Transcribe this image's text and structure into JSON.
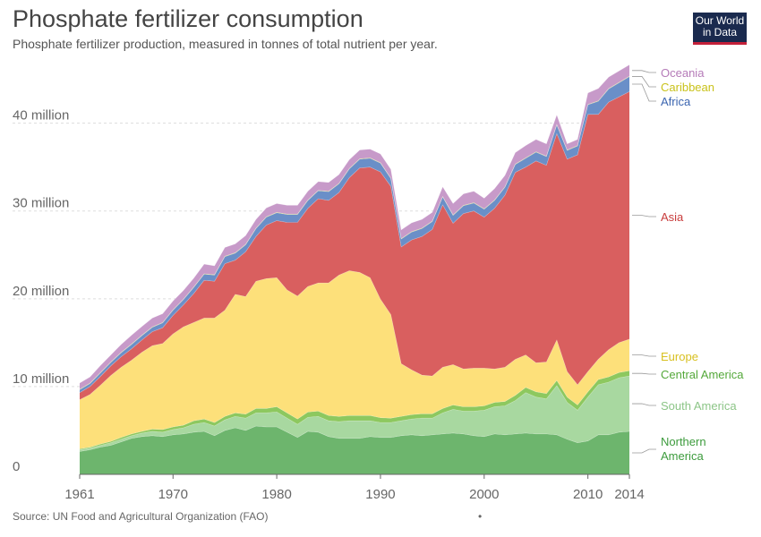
{
  "header": {
    "title": "Phosphate fertilizer consumption",
    "subtitle": "Phosphate fertilizer production, measured in tonnes of total nutrient per year.",
    "logo_line1": "Our World",
    "logo_line2": "in Data"
  },
  "footer": {
    "source": "Source: UN Food and Agricultural Organization (FAO)",
    "dot": "•"
  },
  "chart_data": {
    "type": "area",
    "stacked": true,
    "title": "Phosphate fertilizer consumption",
    "xlim": [
      1961,
      2014
    ],
    "ylim": [
      0,
      47000000
    ],
    "y_ticks": [
      0,
      10000000,
      20000000,
      30000000,
      40000000
    ],
    "y_tick_labels": [
      "0",
      "10 million",
      "20 million",
      "30 million",
      "40 million"
    ],
    "x_ticks": [
      1961,
      1970,
      1980,
      1990,
      2000,
      2010,
      2014
    ],
    "x_tick_labels": [
      "1961",
      "1970",
      "1980",
      "1990",
      "2000",
      "2010",
      "2014"
    ],
    "grid": true,
    "legend_placement": "right",
    "x": [
      1961,
      1962,
      1963,
      1964,
      1965,
      1966,
      1967,
      1968,
      1969,
      1970,
      1971,
      1972,
      1973,
      1974,
      1975,
      1976,
      1977,
      1978,
      1979,
      1980,
      1981,
      1982,
      1983,
      1984,
      1985,
      1986,
      1987,
      1988,
      1989,
      1990,
      1991,
      1992,
      1993,
      1994,
      1995,
      1996,
      1997,
      1998,
      1999,
      2000,
      2001,
      2002,
      2003,
      2004,
      2005,
      2006,
      2007,
      2008,
      2009,
      2010,
      2011,
      2012,
      2013,
      2014
    ],
    "series": [
      {
        "name": "Northern America",
        "color": "#6db56d",
        "values": [
          2.6,
          2.8,
          3.1,
          3.3,
          3.7,
          4.1,
          4.3,
          4.4,
          4.3,
          4.5,
          4.6,
          4.8,
          4.9,
          4.4,
          5.0,
          5.3,
          5.0,
          5.5,
          5.4,
          5.4,
          4.8,
          4.2,
          4.9,
          4.8,
          4.3,
          4.1,
          4.1,
          4.1,
          4.3,
          4.2,
          4.2,
          4.4,
          4.5,
          4.4,
          4.5,
          4.6,
          4.7,
          4.6,
          4.4,
          4.3,
          4.6,
          4.5,
          4.6,
          4.7,
          4.6,
          4.6,
          4.5,
          4.0,
          3.6,
          3.8,
          4.5,
          4.5,
          4.8,
          4.9
        ]
      },
      {
        "name": "South America",
        "color": "#a8d8a0",
        "values": [
          0.2,
          0.2,
          0.2,
          0.3,
          0.3,
          0.3,
          0.4,
          0.5,
          0.5,
          0.6,
          0.7,
          0.9,
          1.0,
          1.1,
          1.2,
          1.3,
          1.4,
          1.5,
          1.6,
          1.7,
          1.6,
          1.5,
          1.6,
          1.8,
          1.8,
          1.9,
          2.0,
          2.0,
          1.8,
          1.7,
          1.7,
          1.7,
          1.8,
          2.0,
          1.9,
          2.4,
          2.7,
          2.6,
          2.8,
          3.0,
          3.1,
          3.3,
          3.8,
          4.6,
          4.2,
          4.0,
          5.6,
          4.2,
          3.7,
          5.0,
          5.7,
          6.0,
          6.2,
          6.3
        ]
      },
      {
        "name": "Central America",
        "color": "#8dc85f",
        "values": [
          0.1,
          0.1,
          0.15,
          0.15,
          0.2,
          0.2,
          0.2,
          0.25,
          0.3,
          0.3,
          0.3,
          0.4,
          0.4,
          0.4,
          0.4,
          0.4,
          0.45,
          0.5,
          0.5,
          0.6,
          0.6,
          0.6,
          0.6,
          0.6,
          0.6,
          0.6,
          0.6,
          0.6,
          0.6,
          0.55,
          0.5,
          0.5,
          0.5,
          0.5,
          0.5,
          0.5,
          0.5,
          0.5,
          0.5,
          0.5,
          0.5,
          0.5,
          0.6,
          0.6,
          0.6,
          0.6,
          0.6,
          0.6,
          0.6,
          0.6,
          0.6,
          0.6,
          0.6,
          0.6
        ]
      },
      {
        "name": "Europe",
        "color": "#fde07a",
        "values": [
          5.6,
          6.0,
          6.7,
          7.5,
          8.0,
          8.4,
          9.0,
          9.5,
          9.8,
          10.6,
          11.2,
          11.2,
          11.5,
          11.9,
          12.1,
          13.5,
          13.4,
          14.5,
          14.8,
          14.7,
          14.0,
          14.0,
          14.3,
          14.6,
          15.1,
          16.1,
          16.5,
          16.3,
          15.7,
          13.5,
          11.8,
          6.0,
          5.1,
          4.4,
          4.3,
          4.7,
          4.6,
          4.3,
          4.4,
          4.3,
          3.8,
          3.9,
          4.1,
          3.7,
          3.3,
          3.6,
          4.6,
          2.9,
          2.3,
          2.3,
          2.3,
          3.1,
          3.4,
          3.6
        ]
      },
      {
        "name": "Asia",
        "color": "#d95f5f",
        "values": [
          0.8,
          0.9,
          1.0,
          1.1,
          1.2,
          1.3,
          1.4,
          1.6,
          1.8,
          2.1,
          2.5,
          3.3,
          4.3,
          4.2,
          5.3,
          3.9,
          5.1,
          5.1,
          6.1,
          6.5,
          7.7,
          8.4,
          8.9,
          9.6,
          9.4,
          9.4,
          10.6,
          11.9,
          12.6,
          14.5,
          14.6,
          13.3,
          14.8,
          15.8,
          16.7,
          18.5,
          16.1,
          17.7,
          17.9,
          17.2,
          18.3,
          19.6,
          21.3,
          21.4,
          23.0,
          22.4,
          23.5,
          24.2,
          26.2,
          29.3,
          27.9,
          28.2,
          28.0,
          28.2
        ]
      },
      {
        "name": "Africa",
        "color": "#6a8fc8",
        "values": [
          0.35,
          0.35,
          0.4,
          0.4,
          0.45,
          0.5,
          0.5,
          0.5,
          0.55,
          0.6,
          0.6,
          0.7,
          0.7,
          0.7,
          0.8,
          0.8,
          0.8,
          0.9,
          0.9,
          0.9,
          0.9,
          0.9,
          0.9,
          0.9,
          1.0,
          1.0,
          1.0,
          1.0,
          1.0,
          1.0,
          0.9,
          0.9,
          0.9,
          0.9,
          0.9,
          0.9,
          0.9,
          0.9,
          0.9,
          0.9,
          0.9,
          0.9,
          0.9,
          1.0,
          1.0,
          1.0,
          1.0,
          1.0,
          1.0,
          1.1,
          1.5,
          1.5,
          1.6,
          1.7
        ]
      },
      {
        "name": "Caribbean",
        "color": "#c9c83e",
        "values": [
          0.05,
          0.05,
          0.05,
          0.05,
          0.05,
          0.05,
          0.05,
          0.05,
          0.05,
          0.05,
          0.05,
          0.05,
          0.05,
          0.05,
          0.05,
          0.05,
          0.05,
          0.05,
          0.05,
          0.05,
          0.05,
          0.05,
          0.05,
          0.05,
          0.05,
          0.05,
          0.05,
          0.05,
          0.05,
          0.05,
          0.05,
          0.05,
          0.05,
          0.05,
          0.05,
          0.05,
          0.05,
          0.05,
          0.05,
          0.05,
          0.05,
          0.05,
          0.05,
          0.05,
          0.05,
          0.05,
          0.05,
          0.05,
          0.05,
          0.05,
          0.05,
          0.05,
          0.05,
          0.05
        ]
      },
      {
        "name": "Oceania",
        "color": "#c79ac9",
        "values": [
          0.7,
          0.7,
          0.8,
          0.8,
          0.9,
          1.0,
          1.0,
          1.0,
          1.0,
          1.0,
          1.0,
          1.0,
          1.1,
          1.0,
          1.0,
          1.0,
          1.0,
          1.0,
          1.0,
          1.0,
          1.0,
          1.0,
          1.0,
          1.0,
          1.0,
          1.0,
          1.0,
          1.0,
          1.0,
          1.0,
          1.0,
          1.0,
          1.0,
          1.0,
          1.0,
          1.1,
          1.3,
          1.3,
          1.3,
          1.2,
          1.3,
          1.3,
          1.3,
          1.4,
          1.4,
          1.4,
          1.1,
          0.7,
          0.7,
          1.3,
          1.4,
          1.3,
          1.3,
          1.3
        ]
      }
    ],
    "value_unit": "million tonnes"
  }
}
